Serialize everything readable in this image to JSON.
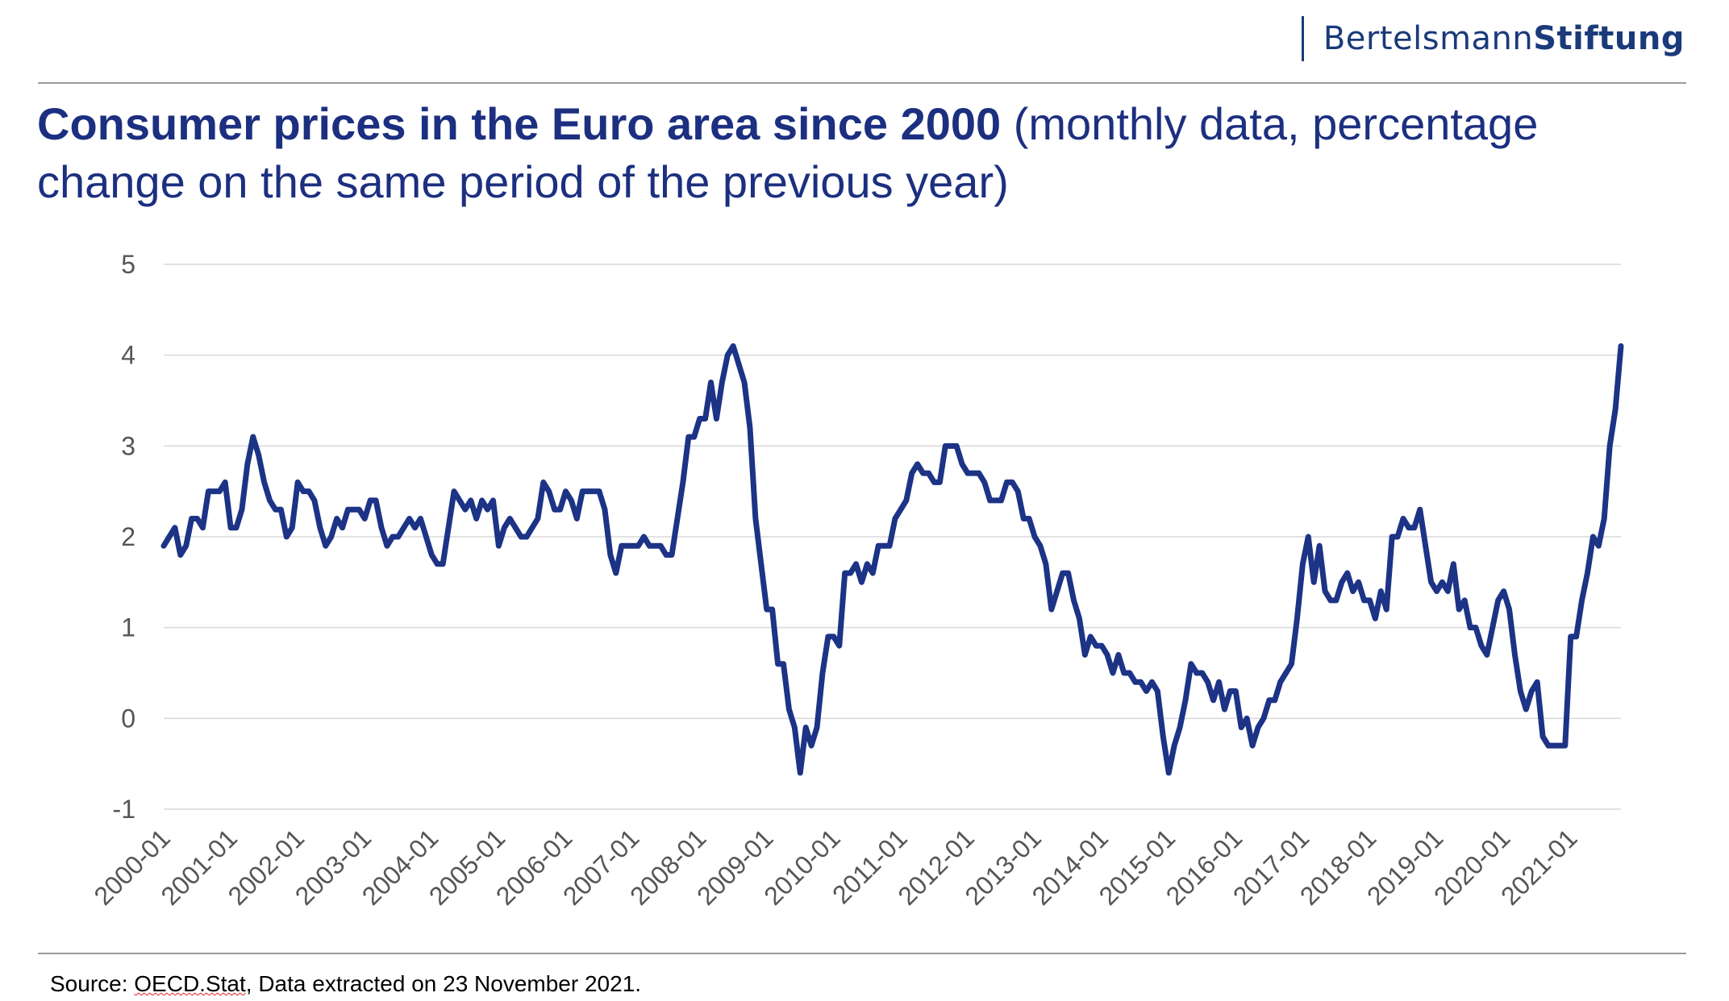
{
  "brand": {
    "light": "Bertelsmann",
    "bold": "Stiftung"
  },
  "title": {
    "bold": "Consumer prices in the Euro area since 2000",
    "rest": " (monthly data, percentage change on the same period of the previous year)"
  },
  "source": {
    "prefix": "Source: ",
    "underlined": "OECD.Stat",
    "suffix": ", Data extracted on 23 November 2021."
  },
  "colors": {
    "line": "#1c3386",
    "title": "#1c2f80",
    "grid": "#d9d9d9"
  },
  "chart_data": {
    "type": "line",
    "title": "Consumer prices in the Euro area since 2000 (monthly data, percentage change on the same period of the previous year)",
    "xlabel": "",
    "ylabel": "",
    "ylim": [
      -1,
      5
    ],
    "yticks": [
      -1,
      0,
      1,
      2,
      3,
      4,
      5
    ],
    "grid": "horizontal",
    "x_start": "2000-01",
    "x_end": "2021-10",
    "x_tick_labels": [
      "2000-01",
      "2001-01",
      "2002-01",
      "2003-01",
      "2004-01",
      "2005-01",
      "2006-01",
      "2007-01",
      "2008-01",
      "2009-01",
      "2010-01",
      "2011-01",
      "2012-01",
      "2013-01",
      "2014-01",
      "2015-01",
      "2016-01",
      "2017-01",
      "2018-01",
      "2019-01",
      "2020-01",
      "2021-01"
    ],
    "series": [
      {
        "values": [
          1.9,
          2.0,
          2.1,
          1.8,
          1.9,
          2.2,
          2.2,
          2.1,
          2.5,
          2.5,
          2.5,
          2.6,
          2.1,
          2.1,
          2.3,
          2.8,
          3.1,
          2.9,
          2.6,
          2.4,
          2.3,
          2.3,
          2.0,
          2.1,
          2.6,
          2.5,
          2.5,
          2.4,
          2.1,
          1.9,
          2.0,
          2.2,
          2.1,
          2.3,
          2.3,
          2.3,
          2.2,
          2.4,
          2.4,
          2.1,
          1.9,
          2.0,
          2.0,
          2.1,
          2.2,
          2.1,
          2.2,
          2.0,
          1.8,
          1.7,
          1.7,
          2.1,
          2.5,
          2.4,
          2.3,
          2.4,
          2.2,
          2.4,
          2.3,
          2.4,
          1.9,
          2.1,
          2.2,
          2.1,
          2.0,
          2.0,
          2.1,
          2.2,
          2.6,
          2.5,
          2.3,
          2.3,
          2.5,
          2.4,
          2.2,
          2.5,
          2.5,
          2.5,
          2.5,
          2.3,
          1.8,
          1.6,
          1.9,
          1.9,
          1.9,
          1.9,
          2.0,
          1.9,
          1.9,
          1.9,
          1.8,
          1.8,
          2.2,
          2.6,
          3.1,
          3.1,
          3.3,
          3.3,
          3.7,
          3.3,
          3.7,
          4.0,
          4.1,
          3.9,
          3.7,
          3.2,
          2.2,
          1.7,
          1.2,
          1.2,
          0.6,
          0.6,
          0.1,
          -0.1,
          -0.6,
          -0.1,
          -0.3,
          -0.1,
          0.5,
          0.9,
          0.9,
          0.8,
          1.6,
          1.6,
          1.7,
          1.5,
          1.7,
          1.6,
          1.9,
          1.9,
          1.9,
          2.2,
          2.3,
          2.4,
          2.7,
          2.8,
          2.7,
          2.7,
          2.6,
          2.6,
          3.0,
          3.0,
          3.0,
          2.8,
          2.7,
          2.7,
          2.7,
          2.6,
          2.4,
          2.4,
          2.4,
          2.6,
          2.6,
          2.5,
          2.2,
          2.2,
          2.0,
          1.9,
          1.7,
          1.2,
          1.4,
          1.6,
          1.6,
          1.3,
          1.1,
          0.7,
          0.9,
          0.8,
          0.8,
          0.7,
          0.5,
          0.7,
          0.5,
          0.5,
          0.4,
          0.4,
          0.3,
          0.4,
          0.3,
          -0.2,
          -0.6,
          -0.3,
          -0.1,
          0.2,
          0.6,
          0.5,
          0.5,
          0.4,
          0.2,
          0.4,
          0.1,
          0.3,
          0.3,
          -0.1,
          0.0,
          -0.3,
          -0.1,
          0.0,
          0.2,
          0.2,
          0.4,
          0.5,
          0.6,
          1.1,
          1.7,
          2.0,
          1.5,
          1.9,
          1.4,
          1.3,
          1.3,
          1.5,
          1.6,
          1.4,
          1.5,
          1.3,
          1.3,
          1.1,
          1.4,
          1.2,
          2.0,
          2.0,
          2.2,
          2.1,
          2.1,
          2.3,
          1.9,
          1.5,
          1.4,
          1.5,
          1.4,
          1.7,
          1.2,
          1.3,
          1.0,
          1.0,
          0.8,
          0.7,
          1.0,
          1.3,
          1.4,
          1.2,
          0.7,
          0.3,
          0.1,
          0.3,
          0.4,
          -0.2,
          -0.3,
          -0.3,
          -0.3,
          -0.3,
          0.9,
          0.9,
          1.3,
          1.6,
          2.0,
          1.9,
          2.2,
          3.0,
          3.4,
          4.1
        ]
      }
    ]
  }
}
